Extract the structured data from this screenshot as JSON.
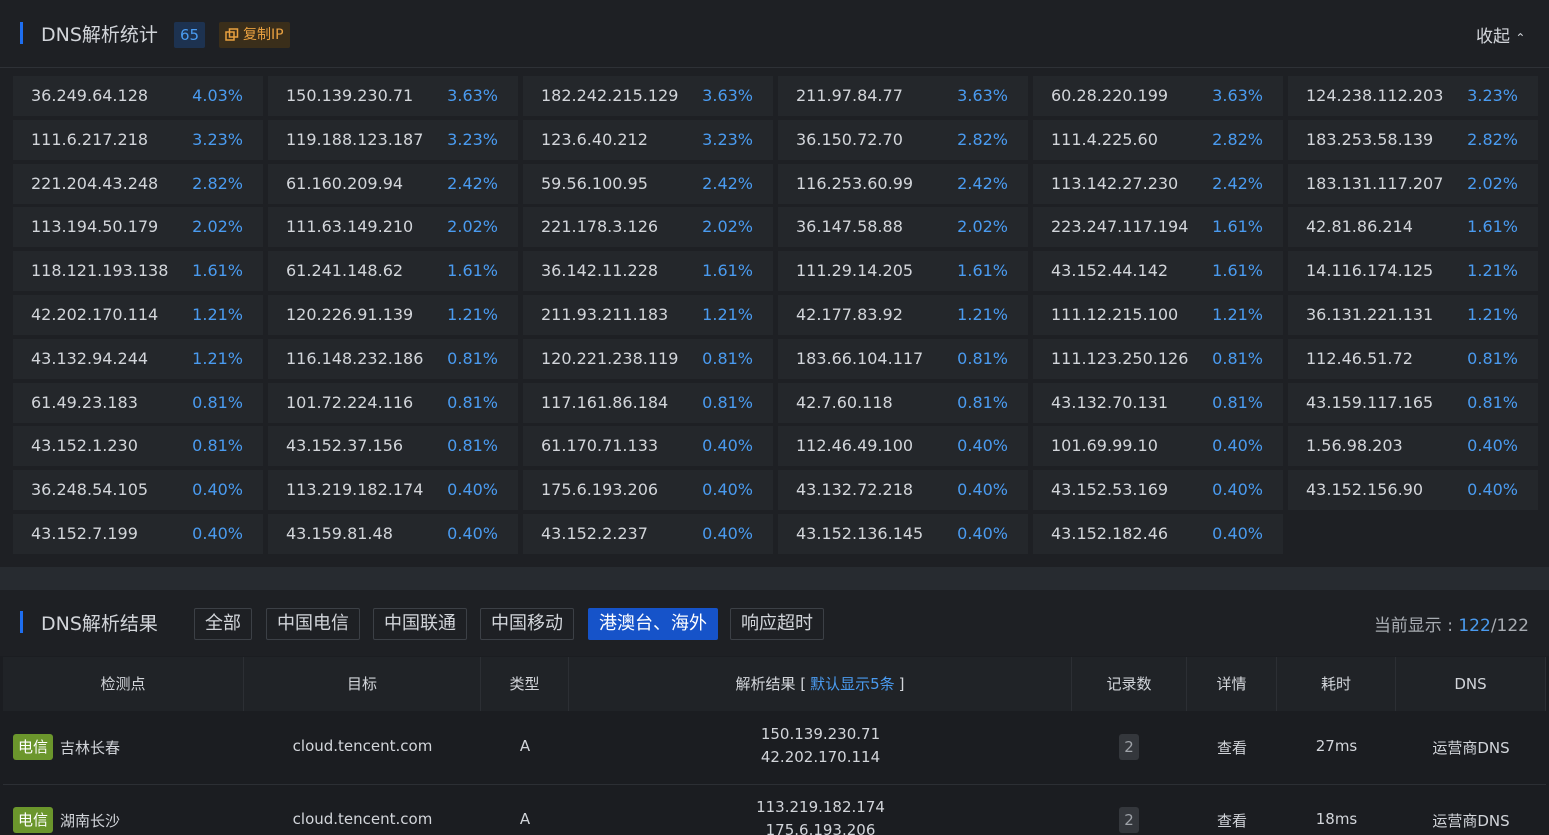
{
  "stats": {
    "title": "DNS解析统计",
    "count": "65",
    "copy_button": "复制IP",
    "collapse": "收起",
    "items": [
      [
        "36.249.64.128",
        "4.03%"
      ],
      [
        "150.139.230.71",
        "3.63%"
      ],
      [
        "182.242.215.129",
        "3.63%"
      ],
      [
        "211.97.84.77",
        "3.63%"
      ],
      [
        "60.28.220.199",
        "3.63%"
      ],
      [
        "124.238.112.203",
        "3.23%"
      ],
      [
        "111.6.217.218",
        "3.23%"
      ],
      [
        "119.188.123.187",
        "3.23%"
      ],
      [
        "123.6.40.212",
        "3.23%"
      ],
      [
        "36.150.72.70",
        "2.82%"
      ],
      [
        "111.4.225.60",
        "2.82%"
      ],
      [
        "183.253.58.139",
        "2.82%"
      ],
      [
        "221.204.43.248",
        "2.82%"
      ],
      [
        "61.160.209.94",
        "2.42%"
      ],
      [
        "59.56.100.95",
        "2.42%"
      ],
      [
        "116.253.60.99",
        "2.42%"
      ],
      [
        "113.142.27.230",
        "2.42%"
      ],
      [
        "183.131.117.207",
        "2.02%"
      ],
      [
        "113.194.50.179",
        "2.02%"
      ],
      [
        "111.63.149.210",
        "2.02%"
      ],
      [
        "221.178.3.126",
        "2.02%"
      ],
      [
        "36.147.58.88",
        "2.02%"
      ],
      [
        "223.247.117.194",
        "1.61%"
      ],
      [
        "42.81.86.214",
        "1.61%"
      ],
      [
        "118.121.193.138",
        "1.61%"
      ],
      [
        "61.241.148.62",
        "1.61%"
      ],
      [
        "36.142.11.228",
        "1.61%"
      ],
      [
        "111.29.14.205",
        "1.61%"
      ],
      [
        "43.152.44.142",
        "1.61%"
      ],
      [
        "14.116.174.125",
        "1.21%"
      ],
      [
        "42.202.170.114",
        "1.21%"
      ],
      [
        "120.226.91.139",
        "1.21%"
      ],
      [
        "211.93.211.183",
        "1.21%"
      ],
      [
        "42.177.83.92",
        "1.21%"
      ],
      [
        "111.12.215.100",
        "1.21%"
      ],
      [
        "36.131.221.131",
        "1.21%"
      ],
      [
        "43.132.94.244",
        "1.21%"
      ],
      [
        "116.148.232.186",
        "0.81%"
      ],
      [
        "120.221.238.119",
        "0.81%"
      ],
      [
        "183.66.104.117",
        "0.81%"
      ],
      [
        "111.123.250.126",
        "0.81%"
      ],
      [
        "112.46.51.72",
        "0.81%"
      ],
      [
        "61.49.23.183",
        "0.81%"
      ],
      [
        "101.72.224.116",
        "0.81%"
      ],
      [
        "117.161.86.184",
        "0.81%"
      ],
      [
        "42.7.60.118",
        "0.81%"
      ],
      [
        "43.132.70.131",
        "0.81%"
      ],
      [
        "43.159.117.165",
        "0.81%"
      ],
      [
        "43.152.1.230",
        "0.81%"
      ],
      [
        "43.152.37.156",
        "0.81%"
      ],
      [
        "61.170.71.133",
        "0.40%"
      ],
      [
        "112.46.49.100",
        "0.40%"
      ],
      [
        "101.69.99.10",
        "0.40%"
      ],
      [
        "1.56.98.203",
        "0.40%"
      ],
      [
        "36.248.54.105",
        "0.40%"
      ],
      [
        "113.219.182.174",
        "0.40%"
      ],
      [
        "175.6.193.206",
        "0.40%"
      ],
      [
        "43.132.72.218",
        "0.40%"
      ],
      [
        "43.152.53.169",
        "0.40%"
      ],
      [
        "43.152.156.90",
        "0.40%"
      ],
      [
        "43.152.7.199",
        "0.40%"
      ],
      [
        "43.159.81.48",
        "0.40%"
      ],
      [
        "43.152.2.237",
        "0.40%"
      ],
      [
        "43.152.136.145",
        "0.40%"
      ],
      [
        "43.152.182.46",
        "0.40%"
      ]
    ]
  },
  "results": {
    "title": "DNS解析结果",
    "tabs": [
      "全部",
      "中国电信",
      "中国联通",
      "中国移动",
      "港澳台、海外",
      "响应超时"
    ],
    "active_tab": 4,
    "display_label": "当前显示 : ",
    "shown": "122",
    "total": "/122",
    "headers": [
      "检测点",
      "目标",
      "类型",
      "解析结果 [",
      "默认显示5条",
      "]",
      "记录数",
      "详情",
      "耗时",
      "DNS"
    ],
    "rows": [
      {
        "isp": "电信",
        "location": "吉林长春",
        "target": "cloud.tencent.com",
        "type": "A",
        "records": [
          "150.139.230.71",
          "42.202.170.114"
        ],
        "count": "2",
        "detail": "查看",
        "time": "27ms",
        "dns": "运营商DNS"
      },
      {
        "isp": "电信",
        "location": "湖南长沙",
        "target": "cloud.tencent.com",
        "type": "A",
        "records": [
          "113.219.182.174",
          "175.6.193.206"
        ],
        "count": "2",
        "detail": "查看",
        "time": "18ms",
        "dns": "运营商DNS"
      }
    ]
  }
}
